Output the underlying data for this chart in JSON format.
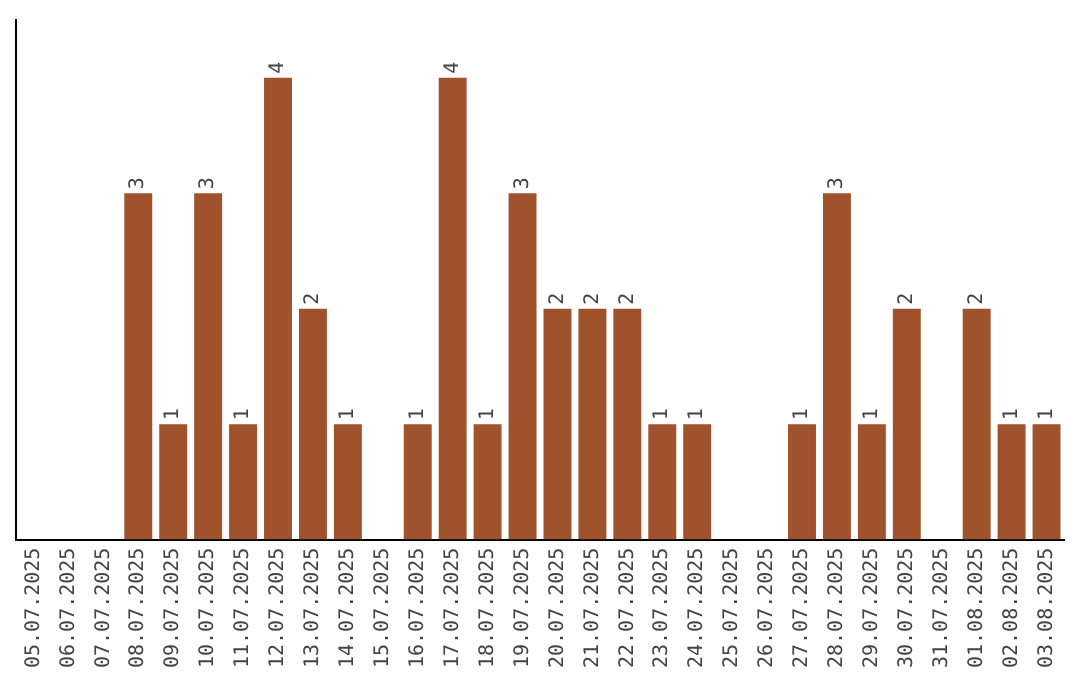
{
  "chart_data": {
    "type": "bar",
    "categories": [
      "05.07.2025",
      "06.07.2025",
      "07.07.2025",
      "08.07.2025",
      "09.07.2025",
      "10.07.2025",
      "11.07.2025",
      "12.07.2025",
      "13.07.2025",
      "14.07.2025",
      "15.07.2025",
      "16.07.2025",
      "17.07.2025",
      "18.07.2025",
      "19.07.2025",
      "20.07.2025",
      "21.07.2025",
      "22.07.2025",
      "23.07.2025",
      "24.07.2025",
      "25.07.2025",
      "26.07.2025",
      "27.07.2025",
      "28.07.2025",
      "29.07.2025",
      "30.07.2025",
      "31.07.2025",
      "01.08.2025",
      "02.08.2025",
      "03.08.2025"
    ],
    "values": [
      null,
      null,
      null,
      3,
      1,
      3,
      1,
      4,
      2,
      1,
      null,
      1,
      4,
      1,
      3,
      2,
      2,
      2,
      1,
      1,
      null,
      null,
      1,
      3,
      1,
      2,
      null,
      2,
      1,
      1
    ],
    "color": "#a0522d",
    "data_labels": true,
    "grid": false,
    "legend": false,
    "tick_labels": "x"
  }
}
